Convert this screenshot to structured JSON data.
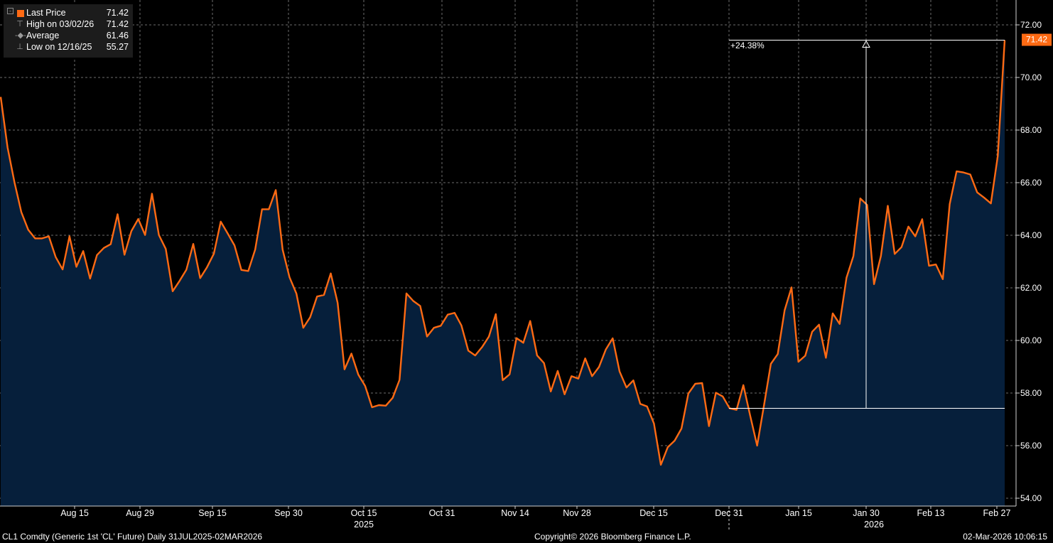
{
  "legend": {
    "rows": [
      {
        "label": "Last Price",
        "value": "71.42"
      },
      {
        "label": "High on 03/02/26",
        "value": "71.42"
      },
      {
        "label": "Average",
        "value": "61.46"
      },
      {
        "label": "Low on 12/16/25",
        "value": "55.27"
      }
    ]
  },
  "footer": {
    "security": "CL1 Comdty (Generic 1st 'CL' Future) Daily 31JUL2025-02MAR2026",
    "copyright": "Copyright© 2026 Bloomberg Finance L.P.",
    "timestamp": "02-Mar-2026 10:06:15"
  },
  "colors": {
    "line": "#ff6a13",
    "fill": "#061f3b",
    "background": "#000000",
    "grid": "#6b6b6b"
  },
  "chart_data": {
    "type": "area",
    "series_name": "Last Price",
    "x_tick_labels": [
      "Aug 15",
      "Aug 29",
      "Sep 15",
      "Sep 30",
      "Oct 15",
      "Oct 31",
      "Nov 14",
      "Nov 28",
      "Dec 15",
      "Dec 31",
      "Jan 15",
      "Jan 30",
      "Feb 13",
      "Feb 27"
    ],
    "x_year_labels": [
      "2025",
      "2026"
    ],
    "y_tick_labels": [
      "54.00",
      "56.00",
      "58.00",
      "60.00",
      "62.00",
      "64.00",
      "66.00",
      "68.00",
      "70.00",
      "72.00"
    ],
    "ylim": [
      54,
      72
    ],
    "grid": true,
    "last_price_tag": "71.42",
    "annotation": {
      "label": "+24.38%",
      "from_value": 57.42,
      "to_value": 71.42
    },
    "values": [
      69.26,
      67.33,
      66.01,
      64.88,
      64.21,
      63.88,
      63.88,
      63.96,
      63.17,
      62.7,
      63.96,
      62.8,
      63.4,
      62.35,
      63.25,
      63.52,
      63.66,
      64.8,
      63.26,
      64.16,
      64.62,
      64.01,
      65.58,
      64.01,
      63.48,
      61.87,
      62.26,
      62.69,
      63.67,
      62.37,
      62.78,
      63.3,
      64.52,
      64.07,
      63.61,
      62.68,
      62.64,
      63.45,
      64.99,
      64.99,
      65.72,
      63.45,
      62.4,
      61.78,
      60.48,
      60.88,
      61.67,
      61.73,
      62.55,
      61.43,
      58.9,
      59.5,
      58.7,
      58.27,
      57.46,
      57.54,
      57.52,
      57.82,
      58.5,
      61.79,
      61.5,
      61.31,
      60.15,
      60.48,
      60.56,
      60.98,
      61.05,
      60.57,
      59.61,
      59.43,
      59.75,
      60.15,
      61.0,
      58.49,
      58.71,
      60.09,
      59.91,
      60.74,
      59.43,
      59.14,
      58.06,
      58.84,
      57.95,
      58.64,
      58.55,
      59.32,
      58.64,
      58.99,
      59.66,
      60.08,
      58.82,
      58.21,
      58.48,
      57.59,
      57.49,
      56.84,
      55.27,
      55.94,
      56.19,
      56.65,
      57.98,
      58.35,
      58.38,
      56.74,
      58.01,
      57.87,
      57.42,
      57.36,
      58.3,
      57.13,
      56.0,
      57.54,
      59.11,
      59.48,
      61.15,
      62.02,
      59.19,
      59.42,
      60.33,
      60.6,
      59.34,
      61.03,
      60.63,
      62.39,
      63.21,
      65.4,
      65.15,
      62.14,
      63.21,
      65.12,
      63.29,
      63.55,
      64.33,
      63.96,
      64.61,
      62.84,
      62.89,
      62.33,
      65.18,
      66.43,
      66.39,
      66.31,
      65.63,
      65.43,
      65.21,
      67.02,
      71.42
    ]
  }
}
